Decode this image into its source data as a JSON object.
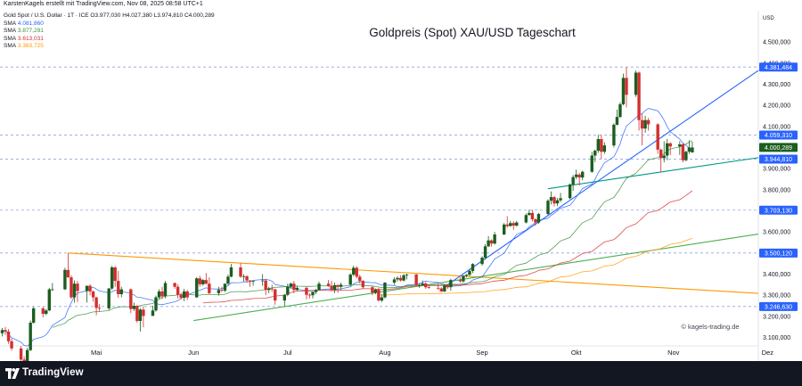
{
  "header": {
    "meta_line": "KarstenKagels erstellt mit TradingView.com, Nov 08, 2025 08:58 UTC+1"
  },
  "legend": {
    "symbol_line": "Gold Spot / U.S. Dollar · 1T · ICE  O3.977,030  H4.027,380  L3.974,810  C4.000,289",
    "sma": [
      {
        "label": "SMA",
        "value": "4.081,860",
        "color": "#2962ff"
      },
      {
        "label": "SMA",
        "value": "3.877,291",
        "color": "#388e3c"
      },
      {
        "label": "SMA",
        "value": "3.613,031",
        "color": "#d32f2f"
      },
      {
        "label": "SMA",
        "value": "3.363,725",
        "color": "#ff9800"
      }
    ]
  },
  "watermark": "© kagels-trading.de",
  "footer": {
    "brand": "TradingView"
  },
  "colors": {
    "up": "#1b5e20",
    "down": "#d32f2f",
    "background": "#ffffff",
    "footer": "#131722"
  },
  "chart_data": {
    "type": "candlestick",
    "title": "Goldpreis (Spot) XAU/USD Tageschart",
    "currency": "USD",
    "ylim": [
      3060,
      4640
    ],
    "y_ticks": [
      3100,
      3200,
      3300,
      3400,
      3500,
      3600,
      3700,
      3800,
      3900,
      4000,
      4100,
      4200,
      4300,
      4400,
      4500
    ],
    "y_tick_labels": [
      "3.100,000",
      "3.200,000",
      "3.300,000",
      "3.400,000",
      "3.500,000",
      "3.600,000",
      "3.700,000",
      "3.800,000",
      "3.900,000",
      "4.000,000",
      "4.100,000",
      "4.200,000",
      "4.300,000",
      "4.400,000",
      "4.500,000"
    ],
    "x_ticks": [
      {
        "label": "Mai",
        "date": "2025-05-01"
      },
      {
        "label": "Jun",
        "date": "2025-06-01"
      },
      {
        "label": "Jul",
        "date": "2025-07-01"
      },
      {
        "label": "Aug",
        "date": "2025-08-01"
      },
      {
        "label": "Sep",
        "date": "2025-09-01"
      },
      {
        "label": "Okt",
        "date": "2025-10-01"
      },
      {
        "label": "Nov",
        "date": "2025-11-01"
      },
      {
        "label": "Dez",
        "date": "2025-12-01"
      }
    ],
    "key_levels": [
      {
        "price": 4381.484,
        "label": "4.381,484"
      },
      {
        "price": 4059.31,
        "label": "4.059,310"
      },
      {
        "price": 3944.81,
        "label": "3.944,810"
      },
      {
        "price": 3703.13,
        "label": "3.703,130"
      },
      {
        "price": 3500.12,
        "label": "3.500,120"
      },
      {
        "price": 3246.63,
        "label": "3.246,630"
      }
    ],
    "last_price": {
      "price": 4000.289,
      "label": "4.000,289"
    },
    "trendlines": [
      {
        "name": "",
        "color": "#ff9800",
        "from": {
          "date": "2025-04-22",
          "price": 3500
        },
        "to": {
          "date": "2025-12-20",
          "price": 3290
        }
      },
      {
        "name": "",
        "color": "#4caf50",
        "from": {
          "date": "2025-06-01",
          "price": 3180
        },
        "to": {
          "date": "2025-12-20",
          "price": 3640
        }
      },
      {
        "name": "",
        "color": "#2962ff",
        "from": {
          "date": "2025-08-20",
          "price": 3340
        },
        "to": {
          "date": "2025-12-20",
          "price": 4590
        }
      },
      {
        "name": "",
        "color": "#009688",
        "from": {
          "date": "2025-09-22",
          "price": 3805
        },
        "to": {
          "date": "2025-12-20",
          "price": 4000
        }
      }
    ],
    "candles": [
      [
        "2025-04-01",
        3120,
        3145,
        3105,
        3135
      ],
      [
        "2025-04-02",
        3135,
        3150,
        3112,
        3128
      ],
      [
        "2025-04-03",
        3128,
        3140,
        3070,
        3082
      ],
      [
        "2025-04-04",
        3082,
        3095,
        3038,
        3048
      ],
      [
        "2025-04-07",
        3048,
        3060,
        2985,
        2995
      ],
      [
        "2025-04-08",
        2995,
        3010,
        2975,
        2985
      ],
      [
        "2025-04-09",
        2985,
        3050,
        2978,
        3040
      ],
      [
        "2025-04-10",
        3040,
        3180,
        3035,
        3170
      ],
      [
        "2025-04-11",
        3170,
        3245,
        3165,
        3238
      ],
      [
        "2025-04-14",
        3238,
        3245,
        3195,
        3212
      ],
      [
        "2025-04-15",
        3212,
        3235,
        3205,
        3228
      ],
      [
        "2025-04-16",
        3228,
        3335,
        3225,
        3328
      ],
      [
        "2025-04-17",
        3328,
        3358,
        3320,
        3328
      ],
      [
        "2025-04-21",
        3328,
        3430,
        3325,
        3420
      ],
      [
        "2025-04-22",
        3420,
        3500,
        3382,
        3385
      ],
      [
        "2025-04-23",
        3385,
        3395,
        3282,
        3290
      ],
      [
        "2025-04-24",
        3290,
        3370,
        3265,
        3355
      ],
      [
        "2025-04-25",
        3355,
        3368,
        3268,
        3320
      ],
      [
        "2025-04-28",
        3320,
        3345,
        3265,
        3345
      ],
      [
        "2025-04-29",
        3345,
        3352,
        3300,
        3318
      ],
      [
        "2025-04-30",
        3318,
        3322,
        3270,
        3290
      ],
      [
        "2025-05-01",
        3290,
        3293,
        3205,
        3240
      ],
      [
        "2025-05-02",
        3240,
        3258,
        3222,
        3238
      ],
      [
        "2025-05-05",
        3238,
        3335,
        3230,
        3332
      ],
      [
        "2025-05-06",
        3332,
        3440,
        3325,
        3432
      ],
      [
        "2025-05-07",
        3432,
        3438,
        3340,
        3368
      ],
      [
        "2025-05-08",
        3368,
        3415,
        3288,
        3305
      ],
      [
        "2025-05-09",
        3305,
        3340,
        3290,
        3328
      ],
      [
        "2025-05-12",
        3328,
        3332,
        3215,
        3235
      ],
      [
        "2025-05-13",
        3235,
        3265,
        3225,
        3250
      ],
      [
        "2025-05-14",
        3250,
        3253,
        3170,
        3178
      ],
      [
        "2025-05-15",
        3178,
        3238,
        3128,
        3232
      ],
      [
        "2025-05-16",
        3232,
        3248,
        3148,
        3202
      ],
      [
        "2025-05-19",
        3202,
        3250,
        3205,
        3228
      ],
      [
        "2025-05-20",
        3228,
        3298,
        3222,
        3290
      ],
      [
        "2025-05-21",
        3290,
        3328,
        3282,
        3318
      ],
      [
        "2025-05-22",
        3318,
        3340,
        3282,
        3295
      ],
      [
        "2025-05-23",
        3295,
        3368,
        3285,
        3358
      ],
      [
        "2025-05-26",
        3358,
        3360,
        3330,
        3340
      ],
      [
        "2025-05-27",
        3340,
        3352,
        3285,
        3302
      ],
      [
        "2025-05-28",
        3302,
        3312,
        3280,
        3288
      ],
      [
        "2025-05-29",
        3288,
        3330,
        3272,
        3318
      ],
      [
        "2025-05-30",
        3318,
        3325,
        3278,
        3290
      ],
      [
        "2025-06-02",
        3290,
        3385,
        3288,
        3380
      ],
      [
        "2025-06-03",
        3380,
        3392,
        3340,
        3352
      ],
      [
        "2025-06-04",
        3352,
        3378,
        3345,
        3372
      ],
      [
        "2025-06-05",
        3372,
        3405,
        3350,
        3355
      ],
      [
        "2025-06-06",
        3355,
        3385,
        3305,
        3310
      ],
      [
        "2025-06-09",
        3310,
        3340,
        3298,
        3325
      ],
      [
        "2025-06-10",
        3325,
        3340,
        3315,
        3322
      ],
      [
        "2025-06-11",
        3322,
        3350,
        3315,
        3355
      ],
      [
        "2025-06-12",
        3355,
        3398,
        3348,
        3388
      ],
      [
        "2025-06-13",
        3388,
        3448,
        3385,
        3432
      ],
      [
        "2025-06-16",
        3432,
        3452,
        3382,
        3388
      ],
      [
        "2025-06-17",
        3388,
        3400,
        3365,
        3390
      ],
      [
        "2025-06-18",
        3390,
        3395,
        3360,
        3370
      ],
      [
        "2025-06-19",
        3370,
        3372,
        3340,
        3365
      ],
      [
        "2025-06-20",
        3365,
        3370,
        3345,
        3368
      ],
      [
        "2025-06-23",
        3368,
        3400,
        3345,
        3370
      ],
      [
        "2025-06-24",
        3370,
        3378,
        3300,
        3325
      ],
      [
        "2025-06-25",
        3325,
        3340,
        3310,
        3332
      ],
      [
        "2025-06-26",
        3332,
        3350,
        3315,
        3328
      ],
      [
        "2025-06-27",
        3328,
        3330,
        3255,
        3275
      ],
      [
        "2025-06-30",
        3275,
        3305,
        3248,
        3302
      ],
      [
        "2025-07-01",
        3302,
        3355,
        3295,
        3340
      ],
      [
        "2025-07-02",
        3340,
        3360,
        3330,
        3355
      ],
      [
        "2025-07-03",
        3355,
        3368,
        3310,
        3325
      ],
      [
        "2025-07-04",
        3325,
        3345,
        3320,
        3335
      ],
      [
        "2025-07-07",
        3335,
        3340,
        3280,
        3302
      ],
      [
        "2025-07-08",
        3302,
        3310,
        3285,
        3300
      ],
      [
        "2025-07-09",
        3300,
        3318,
        3285,
        3315
      ],
      [
        "2025-07-10",
        3315,
        3330,
        3305,
        3325
      ],
      [
        "2025-07-11",
        3325,
        3365,
        3322,
        3355
      ],
      [
        "2025-07-14",
        3355,
        3372,
        3340,
        3345
      ],
      [
        "2025-07-15",
        3345,
        3368,
        3320,
        3325
      ],
      [
        "2025-07-16",
        3325,
        3360,
        3310,
        3348
      ],
      [
        "2025-07-17",
        3348,
        3352,
        3312,
        3340
      ],
      [
        "2025-07-18",
        3340,
        3360,
        3325,
        3350
      ],
      [
        "2025-07-21",
        3350,
        3405,
        3345,
        3398
      ],
      [
        "2025-07-22",
        3398,
        3440,
        3390,
        3430
      ],
      [
        "2025-07-23",
        3430,
        3438,
        3380,
        3388
      ],
      [
        "2025-07-24",
        3388,
        3398,
        3355,
        3368
      ],
      [
        "2025-07-25",
        3368,
        3372,
        3330,
        3338
      ],
      [
        "2025-07-28",
        3338,
        3345,
        3300,
        3312
      ],
      [
        "2025-07-29",
        3312,
        3332,
        3305,
        3326
      ],
      [
        "2025-07-30",
        3326,
        3335,
        3270,
        3275
      ],
      [
        "2025-07-31",
        3275,
        3305,
        3268,
        3290
      ],
      [
        "2025-08-01",
        3290,
        3362,
        3285,
        3360
      ],
      [
        "2025-08-04",
        3360,
        3385,
        3350,
        3375
      ],
      [
        "2025-08-05",
        3375,
        3390,
        3365,
        3382
      ],
      [
        "2025-08-06",
        3382,
        3395,
        3365,
        3370
      ],
      [
        "2025-08-07",
        3370,
        3400,
        3365,
        3395
      ],
      [
        "2025-08-08",
        3395,
        3402,
        3375,
        3398
      ],
      [
        "2025-08-11",
        3398,
        3402,
        3342,
        3348
      ],
      [
        "2025-08-12",
        3348,
        3358,
        3335,
        3348
      ],
      [
        "2025-08-13",
        3348,
        3370,
        3345,
        3356
      ],
      [
        "2025-08-14",
        3356,
        3362,
        3330,
        3338
      ],
      [
        "2025-08-15",
        3338,
        3345,
        3330,
        3335
      ],
      [
        "2025-08-18",
        3335,
        3355,
        3325,
        3332
      ],
      [
        "2025-08-19",
        3332,
        3338,
        3315,
        3318
      ],
      [
        "2025-08-20",
        3318,
        3352,
        3315,
        3345
      ],
      [
        "2025-08-21",
        3345,
        3352,
        3330,
        3338
      ],
      [
        "2025-08-22",
        3338,
        3378,
        3322,
        3372
      ],
      [
        "2025-08-25",
        3372,
        3385,
        3360,
        3366
      ],
      [
        "2025-08-26",
        3366,
        3395,
        3360,
        3392
      ],
      [
        "2025-08-27",
        3392,
        3400,
        3385,
        3397
      ],
      [
        "2025-08-28",
        3397,
        3425,
        3390,
        3415
      ],
      [
        "2025-08-29",
        3415,
        3452,
        3405,
        3448
      ],
      [
        "2025-09-01",
        3448,
        3485,
        3440,
        3478
      ],
      [
        "2025-09-02",
        3478,
        3542,
        3470,
        3532
      ],
      [
        "2025-09-03",
        3532,
        3580,
        3528,
        3560
      ],
      [
        "2025-09-04",
        3560,
        3565,
        3530,
        3545
      ],
      [
        "2025-09-05",
        3545,
        3600,
        3540,
        3588
      ],
      [
        "2025-09-08",
        3588,
        3642,
        3585,
        3635
      ],
      [
        "2025-09-09",
        3635,
        3675,
        3620,
        3628
      ],
      [
        "2025-09-10",
        3628,
        3652,
        3625,
        3642
      ],
      [
        "2025-09-11",
        3642,
        3650,
        3610,
        3630
      ],
      [
        "2025-09-12",
        3630,
        3652,
        3625,
        3645
      ],
      [
        "2025-09-15",
        3645,
        3688,
        3640,
        3680
      ],
      [
        "2025-09-16",
        3680,
        3705,
        3678,
        3690
      ],
      [
        "2025-09-17",
        3690,
        3705,
        3650,
        3660
      ],
      [
        "2025-09-18",
        3660,
        3665,
        3630,
        3645
      ],
      [
        "2025-09-19",
        3645,
        3690,
        3638,
        3685
      ],
      [
        "2025-09-22",
        3685,
        3755,
        3680,
        3748
      ],
      [
        "2025-09-23",
        3748,
        3792,
        3730,
        3765
      ],
      [
        "2025-09-24",
        3765,
        3770,
        3720,
        3735
      ],
      [
        "2025-09-25",
        3735,
        3760,
        3722,
        3750
      ],
      [
        "2025-09-26",
        3750,
        3785,
        3742,
        3760
      ],
      [
        "2025-09-29",
        3760,
        3830,
        3755,
        3825
      ],
      [
        "2025-09-30",
        3825,
        3870,
        3795,
        3860
      ],
      [
        "2025-10-01",
        3860,
        3895,
        3850,
        3872
      ],
      [
        "2025-10-02",
        3872,
        3880,
        3820,
        3858
      ],
      [
        "2025-10-03",
        3858,
        3890,
        3845,
        3885
      ],
      [
        "2025-10-06",
        3885,
        3980,
        3880,
        3962
      ],
      [
        "2025-10-07",
        3962,
        3990,
        3930,
        3985
      ],
      [
        "2025-10-08",
        3985,
        4060,
        3975,
        4040
      ],
      [
        "2025-10-09",
        4040,
        4060,
        3945,
        3980
      ],
      [
        "2025-10-10",
        3980,
        4025,
        3970,
        4010
      ],
      [
        "2025-10-13",
        4010,
        4115,
        4000,
        4108
      ],
      [
        "2025-10-14",
        4108,
        4180,
        4105,
        4145
      ],
      [
        "2025-10-15",
        4145,
        4215,
        4140,
        4205
      ],
      [
        "2025-10-16",
        4205,
        4350,
        4200,
        4330
      ],
      [
        "2025-10-17",
        4330,
        4380,
        4190,
        4250
      ],
      [
        "2025-10-20",
        4250,
        4365,
        4240,
        4355
      ],
      [
        "2025-10-21",
        4355,
        4360,
        4080,
        4130
      ],
      [
        "2025-10-22",
        4130,
        4160,
        4010,
        4090
      ],
      [
        "2025-10-23",
        4090,
        4150,
        4070,
        4130
      ],
      [
        "2025-10-24",
        4130,
        4140,
        4080,
        4110
      ],
      [
        "2025-10-27",
        4110,
        4115,
        3970,
        3990
      ],
      [
        "2025-10-28",
        3990,
        3995,
        3885,
        3950
      ],
      [
        "2025-10-29",
        3950,
        4030,
        3930,
        3962
      ],
      [
        "2025-10-30",
        3962,
        4040,
        3940,
        4020
      ],
      [
        "2025-10-31",
        4020,
        4025,
        3965,
        4005
      ],
      [
        "2025-11-03",
        4005,
        4030,
        3965,
        4015
      ],
      [
        "2025-11-04",
        4015,
        4020,
        3930,
        3940
      ],
      [
        "2025-11-05",
        3940,
        3985,
        3935,
        3980
      ],
      [
        "2025-11-06",
        3980,
        4035,
        3970,
        4000
      ],
      [
        "2025-11-07",
        3977.03,
        4027.38,
        3974.81,
        4000.289
      ]
    ]
  }
}
